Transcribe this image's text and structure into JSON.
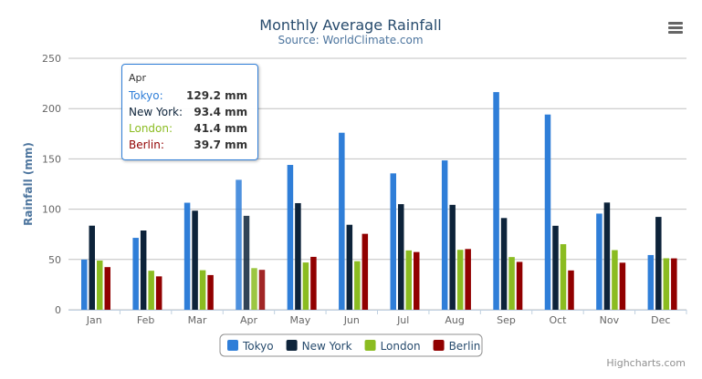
{
  "chart_data": {
    "type": "bar",
    "title": "Monthly Average Rainfall",
    "subtitle": "Source: WorldClimate.com",
    "xlabel": "",
    "ylabel": "Rainfall (mm)",
    "ylim": [
      0,
      250
    ],
    "yticks": [
      0,
      50,
      100,
      150,
      200,
      250
    ],
    "grid": true,
    "legend": "bottom-center",
    "categories": [
      "Jan",
      "Feb",
      "Mar",
      "Apr",
      "May",
      "Jun",
      "Jul",
      "Aug",
      "Sep",
      "Oct",
      "Nov",
      "Dec"
    ],
    "series": [
      {
        "name": "Tokyo",
        "color": "#2f7ed8",
        "values": [
          49.9,
          71.5,
          106.4,
          129.2,
          144.0,
          176.0,
          135.6,
          148.5,
          216.4,
          194.1,
          95.6,
          54.4
        ]
      },
      {
        "name": "New York",
        "color": "#0d233a",
        "values": [
          83.6,
          78.8,
          98.5,
          93.4,
          106.0,
          84.5,
          105.0,
          104.3,
          91.2,
          83.5,
          106.6,
          92.3
        ]
      },
      {
        "name": "London",
        "color": "#8bbc21",
        "values": [
          48.9,
          38.8,
          39.3,
          41.4,
          47.0,
          48.3,
          59.0,
          59.6,
          52.4,
          65.2,
          59.3,
          51.2
        ]
      },
      {
        "name": "Berlin",
        "color": "#910000",
        "values": [
          42.4,
          33.2,
          34.5,
          39.7,
          52.6,
          75.5,
          57.4,
          60.4,
          47.6,
          39.1,
          46.8,
          51.1
        ]
      }
    ],
    "tooltip": {
      "header": "Apr",
      "rows": [
        {
          "name": "Tokyo:",
          "value": "129.2 mm",
          "color": "#2f7ed8"
        },
        {
          "name": "New York:",
          "value": "93.4 mm",
          "color": "#0d233a"
        },
        {
          "name": "London:",
          "value": "41.4 mm",
          "color": "#8bbc21"
        },
        {
          "name": "Berlin:",
          "value": "39.7 mm",
          "color": "#910000"
        }
      ]
    }
  },
  "credits": "Highcharts.com",
  "menu_icon": "hamburger-menu-icon"
}
